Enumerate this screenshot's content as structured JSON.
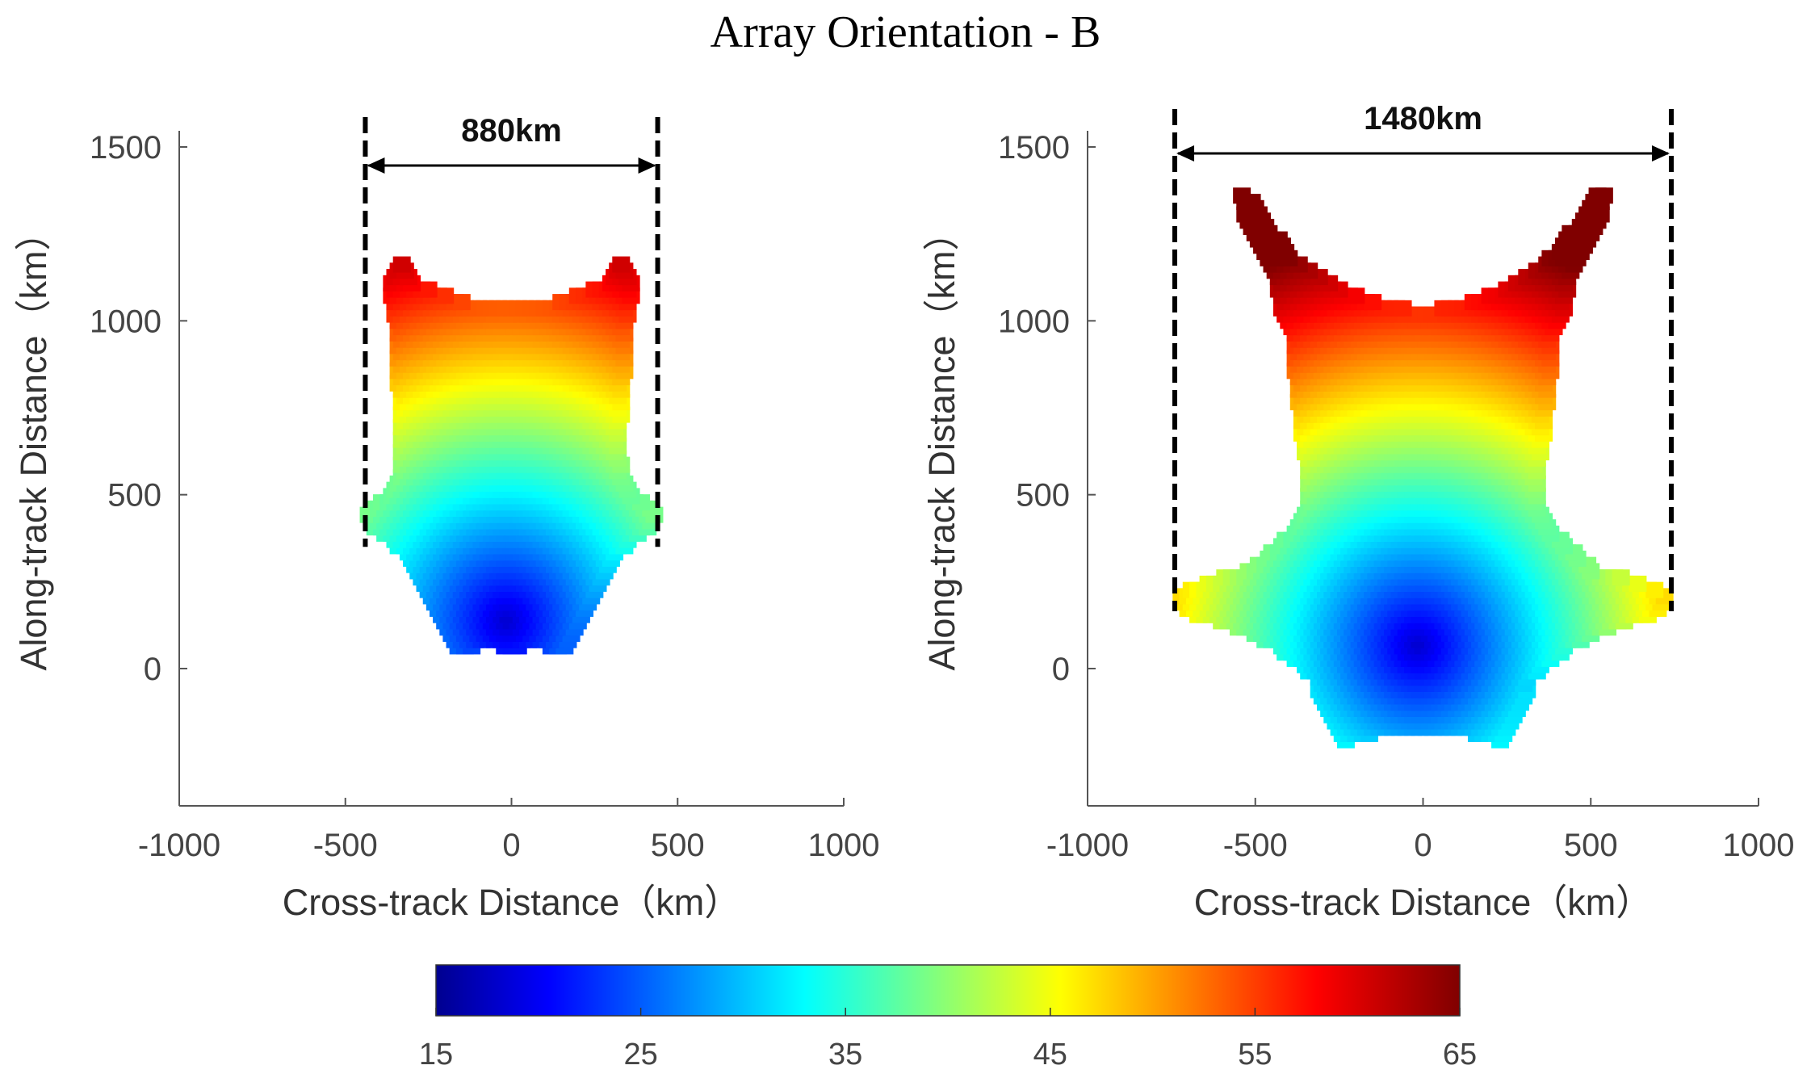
{
  "title": "Array Orientation - B",
  "chart_data": [
    {
      "type": "heatmap",
      "panel": "left",
      "xlabel": "Cross-track Distance（km）",
      "ylabel": "Along-track Distance（km）",
      "xlim": [
        -1000,
        1000
      ],
      "ylim": [
        -400,
        1500
      ],
      "xticks": [
        "-1000",
        "-500",
        "0",
        "500",
        "1000"
      ],
      "yticks": [
        "0",
        "500",
        "1000",
        "1500"
      ],
      "swath": {
        "label": "880km",
        "x_left": -440,
        "x_right": 440,
        "y_bottom": 350,
        "y_top": 1580,
        "arrow_y": 1450
      },
      "footprint_outline": [
        [
          -150,
          50
        ],
        [
          -210,
          120
        ],
        [
          -260,
          230
        ],
        [
          -330,
          340
        ],
        [
          -400,
          400
        ],
        [
          -440,
          420
        ],
        [
          -420,
          470
        ],
        [
          -360,
          500
        ],
        [
          -330,
          600
        ],
        [
          -330,
          700
        ],
        [
          -340,
          820
        ],
        [
          -345,
          900
        ],
        [
          -350,
          1000
        ],
        [
          -370,
          1100
        ],
        [
          -330,
          1190
        ],
        [
          -290,
          1110
        ],
        [
          -220,
          1080
        ],
        [
          -120,
          1050
        ],
        [
          0,
          1040
        ],
        [
          120,
          1050
        ],
        [
          220,
          1080
        ],
        [
          290,
          1110
        ],
        [
          330,
          1190
        ],
        [
          370,
          1100
        ],
        [
          350,
          1000
        ],
        [
          345,
          900
        ],
        [
          340,
          820
        ],
        [
          330,
          700
        ],
        [
          330,
          600
        ],
        [
          360,
          500
        ],
        [
          420,
          470
        ],
        [
          440,
          420
        ],
        [
          400,
          400
        ],
        [
          330,
          340
        ],
        [
          260,
          230
        ],
        [
          210,
          120
        ],
        [
          150,
          50
        ],
        [
          80,
          70
        ],
        [
          0,
          60
        ],
        [
          -80,
          70
        ]
      ],
      "center_peak": [
        0,
        150
      ]
    },
    {
      "type": "heatmap",
      "panel": "right",
      "xlabel": "Cross-track Distance（km）",
      "ylabel": "Along-track Distance（km）",
      "xlim": [
        -1000,
        1000
      ],
      "ylim": [
        -400,
        1500
      ],
      "xticks": [
        "-1000",
        "-500",
        "0",
        "500",
        "1000"
      ],
      "yticks": [
        "0",
        "500",
        "1000",
        "1500"
      ],
      "swath": {
        "label": "1480km",
        "x_left": -740,
        "x_right": 740,
        "y_bottom": 165,
        "y_top": 1610,
        "arrow_y": 1490
      },
      "footprint_outline": [
        [
          -230,
          -210
        ],
        [
          -280,
          -130
        ],
        [
          -330,
          -20
        ],
        [
          -430,
          60
        ],
        [
          -560,
          120
        ],
        [
          -700,
          160
        ],
        [
          -740,
          210
        ],
        [
          -640,
          250
        ],
        [
          -520,
          280
        ],
        [
          -380,
          400
        ],
        [
          -340,
          480
        ],
        [
          -350,
          600
        ],
        [
          -370,
          750
        ],
        [
          -380,
          850
        ],
        [
          -390,
          950
        ],
        [
          -420,
          1030
        ],
        [
          -440,
          1110
        ],
        [
          -520,
          1260
        ],
        [
          -560,
          1420
        ],
        [
          -480,
          1300
        ],
        [
          -380,
          1180
        ],
        [
          -260,
          1100
        ],
        [
          -140,
          1050
        ],
        [
          0,
          1030
        ],
        [
          140,
          1050
        ],
        [
          260,
          1100
        ],
        [
          380,
          1180
        ],
        [
          480,
          1300
        ],
        [
          560,
          1420
        ],
        [
          520,
          1260
        ],
        [
          440,
          1110
        ],
        [
          420,
          1030
        ],
        [
          390,
          950
        ],
        [
          380,
          850
        ],
        [
          370,
          750
        ],
        [
          350,
          600
        ],
        [
          340,
          480
        ],
        [
          380,
          400
        ],
        [
          520,
          280
        ],
        [
          640,
          250
        ],
        [
          740,
          210
        ],
        [
          700,
          160
        ],
        [
          560,
          120
        ],
        [
          430,
          60
        ],
        [
          330,
          -20
        ],
        [
          280,
          -130
        ],
        [
          230,
          -210
        ],
        [
          120,
          -180
        ],
        [
          0,
          -170
        ],
        [
          -120,
          -180
        ]
      ],
      "center_peak": [
        0,
        80
      ]
    }
  ],
  "colorbar": {
    "min": 15,
    "max": 65,
    "tick_labels": [
      "15",
      "25",
      "35",
      "45",
      "55",
      "65"
    ],
    "colormap": [
      "#00008f",
      "#0000ff",
      "#00ffff",
      "#ffff00",
      "#ff0000",
      "#800000"
    ]
  }
}
